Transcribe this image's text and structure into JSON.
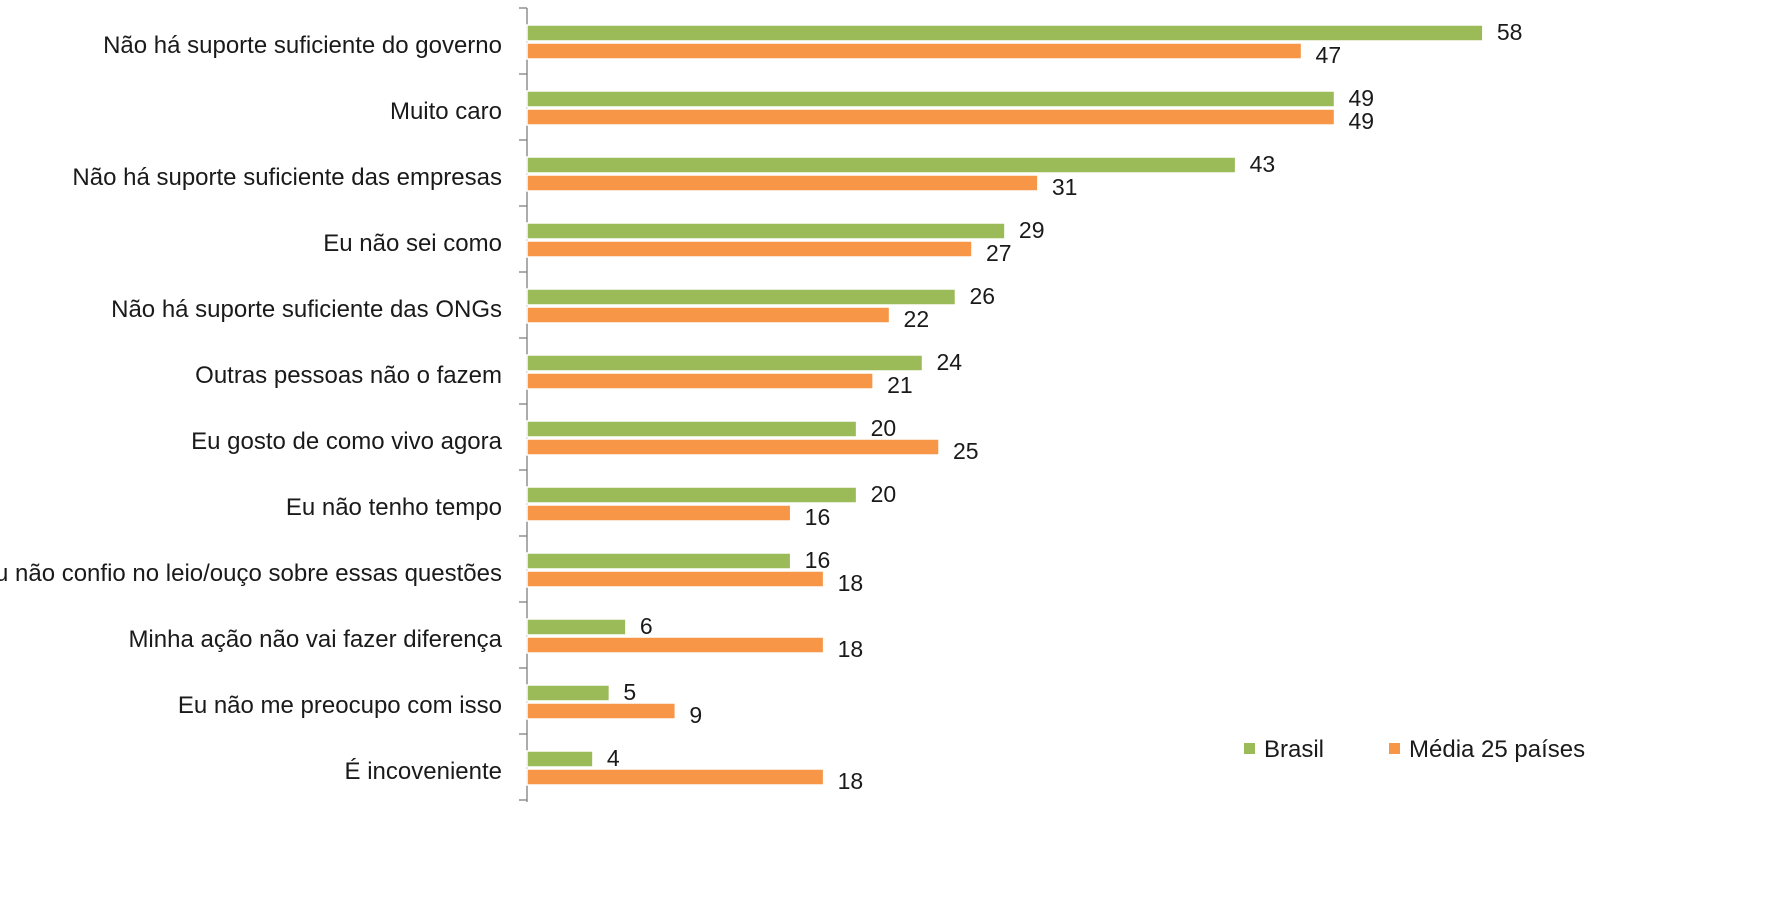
{
  "chart_data": {
    "type": "bar",
    "orientation": "horizontal",
    "title": "",
    "xlabel": "",
    "ylabel": "",
    "xlim": [
      0,
      60
    ],
    "grid": false,
    "legend_position": "bottom-right",
    "categories": [
      "Não há suporte suficiente do governo",
      "Muito caro",
      "Não há suporte suficiente das empresas",
      "Eu não sei como",
      "Não há suporte suficiente das ONGs",
      "Outras pessoas não o fazem",
      "Eu gosto de como vivo agora",
      "Eu não tenho tempo",
      "Eu não confio no leio/ouço sobre essas questões",
      "Minha ação não vai fazer diferença",
      "Eu não me preocupo com isso",
      "É incoveniente"
    ],
    "series": [
      {
        "name": "Brasil",
        "color": "#9bbb59",
        "values": [
          58,
          49,
          43,
          29,
          26,
          24,
          20,
          20,
          16,
          6,
          5,
          4
        ]
      },
      {
        "name": "Média 25 países",
        "color": "#f79646",
        "values": [
          47,
          49,
          31,
          27,
          22,
          21,
          25,
          16,
          18,
          18,
          9,
          18
        ]
      }
    ]
  }
}
